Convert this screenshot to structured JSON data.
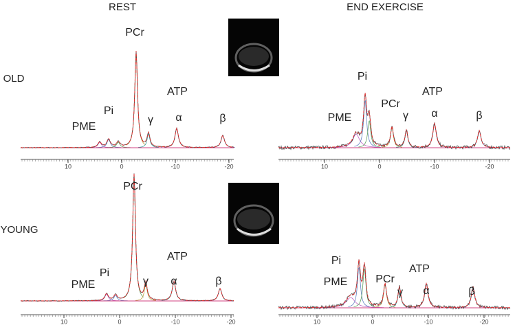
{
  "columns": [
    "REST",
    "END EXERCISE"
  ],
  "rows": [
    "OLD",
    "YOUNG"
  ],
  "panels": [
    {
      "labels": {
        "pcr": "PCr",
        "pi": "Pi",
        "pme": "PME",
        "atp": "ATP",
        "gamma": "γ",
        "alpha": "α",
        "beta": "β"
      },
      "ticks": [
        10,
        0,
        -10,
        -20
      ]
    },
    {
      "labels": {
        "pcr": "PCr",
        "pi": "Pi",
        "pme": "PME",
        "atp": "ATP",
        "gamma": "γ",
        "alpha": "α",
        "beta": "β"
      },
      "ticks": [
        10,
        0,
        -10,
        -20
      ]
    },
    {
      "labels": {
        "pcr": "PCr",
        "pi": "Pi",
        "pme": "PME",
        "atp": "ATP",
        "gamma": "γ",
        "alpha": "α",
        "beta": "β"
      },
      "ticks": [
        10,
        0,
        -10,
        -20
      ]
    },
    {
      "labels": {
        "pcr": "PCr",
        "pi": "Pi",
        "pme": "PME",
        "atp": "ATP",
        "gamma": "γ",
        "alpha": "α",
        "beta": "β"
      },
      "ticks": [
        10,
        0,
        -10,
        -20
      ]
    }
  ]
}
